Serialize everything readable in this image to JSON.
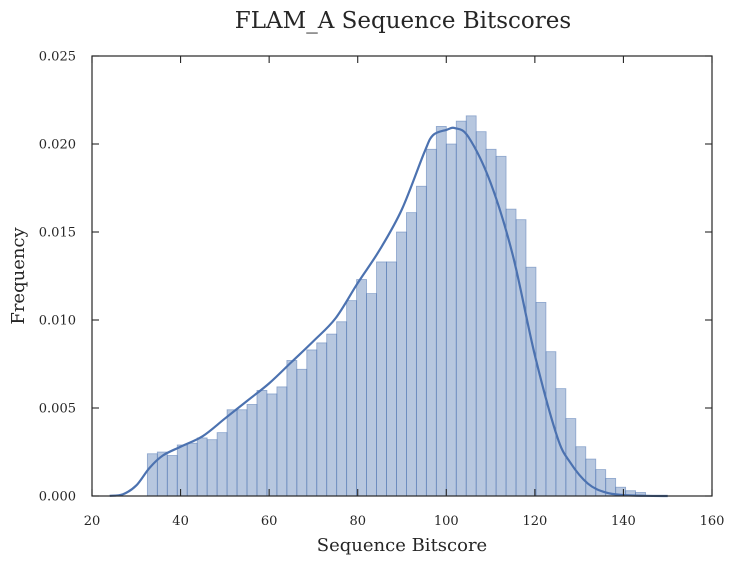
{
  "chart_data": {
    "type": "bar",
    "title": "FLAM_A Sequence Bitscores",
    "xlabel": "Sequence Bitscore",
    "ylabel": "Frequency",
    "xlim": [
      20,
      160
    ],
    "ylim": [
      0,
      0.025
    ],
    "xticks": [
      "20",
      "40",
      "60",
      "80",
      "100",
      "120",
      "140",
      "160"
    ],
    "yticks": [
      "0.000",
      "0.005",
      "0.010",
      "0.015",
      "0.020",
      "0.025"
    ],
    "grid": false,
    "legend": "none",
    "color": "#4c72b0",
    "histogram": {
      "bin_start": 32.5,
      "bin_width": 2.25,
      "values": [
        0.0024,
        0.0025,
        0.0023,
        0.0029,
        0.003,
        0.0033,
        0.0032,
        0.0036,
        0.0049,
        0.0049,
        0.0052,
        0.006,
        0.0058,
        0.0062,
        0.0077,
        0.0072,
        0.0083,
        0.0087,
        0.0092,
        0.0099,
        0.0111,
        0.0123,
        0.0115,
        0.0133,
        0.0133,
        0.015,
        0.0161,
        0.0176,
        0.0197,
        0.021,
        0.02,
        0.0213,
        0.0216,
        0.0207,
        0.0197,
        0.0193,
        0.0163,
        0.0157,
        0.013,
        0.011,
        0.0082,
        0.0061,
        0.0044,
        0.0028,
        0.0021,
        0.0015,
        0.001,
        0.0005,
        0.0003,
        0.0002
      ]
    },
    "kde": {
      "x": [
        24,
        27,
        30,
        33,
        36,
        40,
        45,
        50,
        55,
        60,
        65,
        70,
        75,
        80,
        85,
        90,
        95,
        97,
        100,
        102,
        105,
        110,
        115,
        120,
        125,
        128,
        132,
        136,
        140,
        145,
        150
      ],
      "y": [
        1e-05,
        0.0001,
        0.0006,
        0.0016,
        0.0023,
        0.0028,
        0.0034,
        0.0044,
        0.0054,
        0.0064,
        0.0076,
        0.0088,
        0.0101,
        0.0121,
        0.014,
        0.0163,
        0.0195,
        0.0205,
        0.0208,
        0.0209,
        0.0204,
        0.0178,
        0.0137,
        0.008,
        0.0034,
        0.0019,
        0.0007,
        0.0002,
        5e-05,
        1e-05,
        0.0
      ]
    }
  }
}
